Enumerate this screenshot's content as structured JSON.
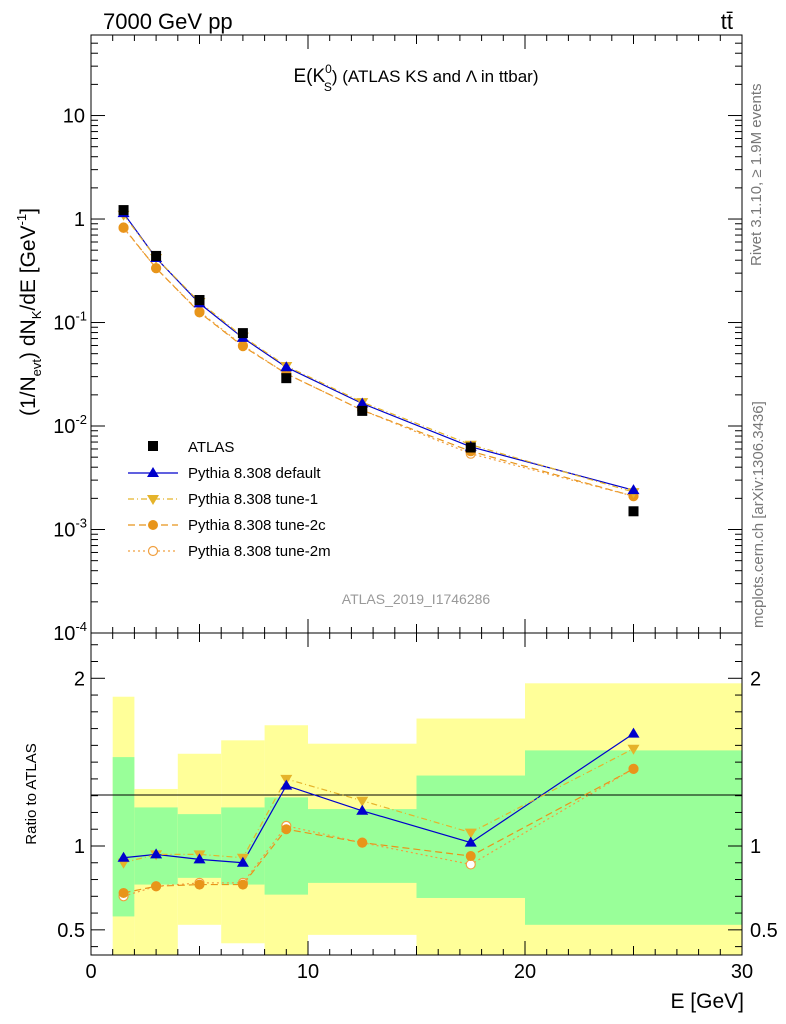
{
  "header": {
    "left": "7000 GeV pp",
    "right": "tt̄"
  },
  "plot_title": {
    "main": "E(K",
    "sup": "0",
    "sub": "S",
    "rest": ") (ATLAS KS and Λ in ttbar)"
  },
  "side_text": {
    "rivet": "Rivet 3.1.10, ≥ 1.9M events",
    "mcplots": "mcplots.cern.ch [arXiv:1306.3436]"
  },
  "analysis_id": "ATLAS_2019_I1746286",
  "main_ylabel": "(1/N_evt) dN_K/dE [GeV^-1]",
  "ratio_ylabel": "Ratio to ATLAS",
  "xlabel": "E [GeV]",
  "legend": [
    {
      "key": "atlas",
      "label": "ATLAS"
    },
    {
      "key": "default",
      "label": "Pythia 8.308 default"
    },
    {
      "key": "tune1",
      "label": "Pythia 8.308 tune-1"
    },
    {
      "key": "tune2c",
      "label": "Pythia 8.308 tune-2c"
    },
    {
      "key": "tune2m",
      "label": "Pythia 8.308 tune-2m"
    }
  ],
  "colors": {
    "default": "#0000cc",
    "tune1": "#e5b32a",
    "tune2c": "#e8951a",
    "tune2m": "#f0a040",
    "green_band": "#99ff99",
    "yellow_band": "#ffff99",
    "analysis_id": "#999999",
    "side_text": "#777777"
  },
  "chart_data": [
    {
      "type": "line",
      "scale": "log-y",
      "xlim": [
        0,
        30
      ],
      "ylim": [
        0.0001,
        60
      ],
      "y_ticks": [
        "10^-4",
        "10^-3",
        "10^-2",
        "10^-1",
        "1",
        "10"
      ],
      "x": [
        1.5,
        3,
        5,
        7,
        9,
        12.5,
        17.5,
        25
      ],
      "series": [
        {
          "name": "ATLAS",
          "values": [
            1.22,
            0.44,
            0.165,
            0.079,
            0.029,
            0.014,
            0.0062,
            0.0015
          ]
        },
        {
          "name": "Pythia 8.308 default",
          "values": [
            1.14,
            0.42,
            0.153,
            0.071,
            0.037,
            0.0165,
            0.0063,
            0.0024
          ]
        },
        {
          "name": "Pythia 8.308 tune-1",
          "values": [
            1.1,
            0.42,
            0.158,
            0.073,
            0.038,
            0.017,
            0.0066,
            0.0023
          ]
        },
        {
          "name": "Pythia 8.308 tune-2c",
          "values": [
            0.83,
            0.335,
            0.125,
            0.059,
            0.032,
            0.0142,
            0.0057,
            0.0021
          ]
        },
        {
          "name": "Pythia 8.308 tune-2m",
          "values": [
            0.82,
            0.335,
            0.127,
            0.06,
            0.032,
            0.0142,
            0.0054,
            0.0021
          ]
        }
      ]
    },
    {
      "type": "line",
      "xlim": [
        0,
        30
      ],
      "ylim": [
        0.35,
        2.27
      ],
      "x_ticks": [
        0,
        10,
        20,
        30
      ],
      "y_ticks": [
        0.5,
        1,
        2
      ],
      "x": [
        1.5,
        3,
        5,
        7,
        9,
        12.5,
        17.5,
        25
      ],
      "bins": [
        [
          1,
          2
        ],
        [
          2,
          4
        ],
        [
          4,
          6
        ],
        [
          6,
          8
        ],
        [
          8,
          10
        ],
        [
          10,
          15
        ],
        [
          15,
          20
        ],
        [
          20,
          30
        ]
      ],
      "green_band": [
        [
          0.58,
          1.53
        ],
        [
          0.77,
          1.23
        ],
        [
          0.81,
          1.19
        ],
        [
          0.77,
          1.23
        ],
        [
          0.71,
          1.29
        ],
        [
          0.78,
          1.22
        ],
        [
          0.69,
          1.42
        ],
        [
          0.53,
          1.57
        ]
      ],
      "yellow_band": [
        [
          0.35,
          1.89
        ],
        [
          0.35,
          1.34
        ],
        [
          0.53,
          1.55
        ],
        [
          0.42,
          1.63
        ],
        [
          0.35,
          1.72
        ],
        [
          0.47,
          1.61
        ],
        [
          0.35,
          1.76
        ],
        [
          0.35,
          1.97
        ]
      ],
      "series": [
        {
          "name": "Pythia 8.308 default",
          "values": [
            0.93,
            0.95,
            0.92,
            0.9,
            1.36,
            1.21,
            1.02,
            1.67
          ]
        },
        {
          "name": "Pythia 8.308 tune-1",
          "values": [
            0.9,
            0.95,
            0.95,
            0.93,
            1.4,
            1.27,
            1.08,
            1.58
          ]
        },
        {
          "name": "Pythia 8.308 tune-2c",
          "values": [
            0.72,
            0.76,
            0.77,
            0.77,
            1.1,
            1.02,
            0.94,
            1.46
          ]
        },
        {
          "name": "Pythia 8.308 tune-2m",
          "values": [
            0.7,
            0.76,
            0.78,
            0.78,
            1.12,
            1.02,
            0.89,
            1.46
          ]
        }
      ]
    }
  ]
}
